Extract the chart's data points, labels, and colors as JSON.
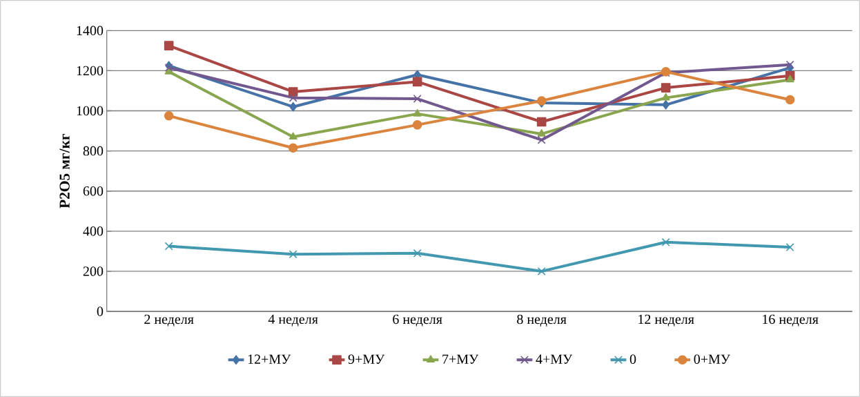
{
  "chart_data": {
    "type": "line",
    "ylabel": "P2O5 мг/кг",
    "categories": [
      "2 неделя",
      "4 неделя",
      "6 неделя",
      "8 неделя",
      "12 неделя",
      "16 неделя"
    ],
    "series": [
      {
        "name": "12+МУ",
        "color": "#4573a7",
        "marker": "diamond",
        "values": [
          1225,
          1020,
          1180,
          1040,
          1030,
          1215
        ]
      },
      {
        "name": "9+МУ",
        "color": "#aa4643",
        "marker": "square",
        "values": [
          1325,
          1095,
          1145,
          945,
          1115,
          1175
        ]
      },
      {
        "name": "7+МУ",
        "color": "#89a54e",
        "marker": "triangle",
        "values": [
          1195,
          870,
          985,
          885,
          1065,
          1155
        ]
      },
      {
        "name": "4+МУ",
        "color": "#71588f",
        "marker": "cross",
        "values": [
          1215,
          1065,
          1060,
          855,
          1190,
          1230
        ]
      },
      {
        "name": "0",
        "color": "#4198af",
        "marker": "cross",
        "values": [
          325,
          285,
          290,
          200,
          345,
          320
        ]
      },
      {
        "name": "0+МУ",
        "color": "#db843d",
        "marker": "circle",
        "values": [
          975,
          815,
          930,
          1050,
          1195,
          1055
        ]
      }
    ],
    "ylim": [
      0,
      1400
    ],
    "yticks": [
      0,
      200,
      400,
      600,
      800,
      1000,
      1200,
      1400
    ],
    "grid": "y",
    "legend": "bottom",
    "line_style": "solid"
  }
}
